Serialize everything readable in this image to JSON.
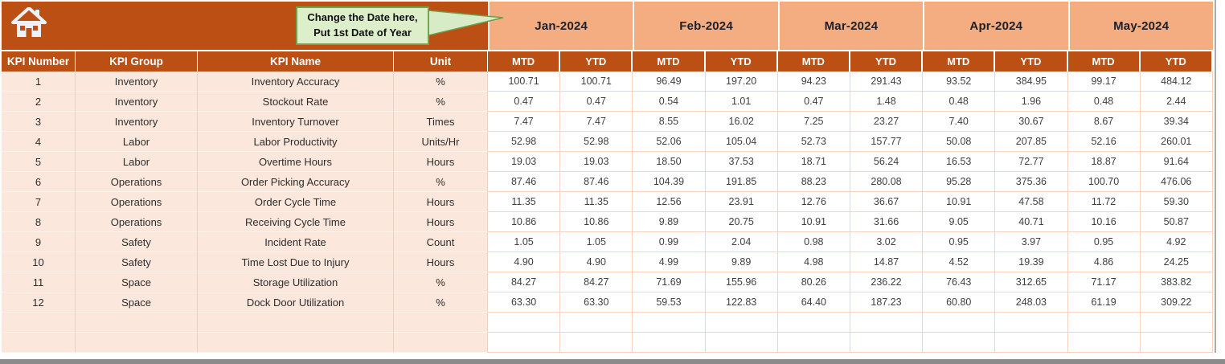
{
  "banner": {
    "callout": {
      "line1": "Change the Date here,",
      "line2": "Put 1st Date of Year"
    }
  },
  "table": {
    "left_headers": [
      "KPI Number",
      "KPI Group",
      "KPI Name",
      "Unit"
    ],
    "months": [
      "Jan-2024",
      "Feb-2024",
      "Mar-2024",
      "Apr-2024",
      "May-2024"
    ],
    "sub_headers": [
      "MTD",
      "YTD"
    ],
    "rows": [
      {
        "num": "1",
        "group": "Inventory",
        "name": "Inventory Accuracy",
        "unit": "%",
        "values": [
          "100.71",
          "100.71",
          "96.49",
          "197.20",
          "94.23",
          "291.43",
          "93.52",
          "384.95",
          "99.17",
          "484.12"
        ]
      },
      {
        "num": "2",
        "group": "Inventory",
        "name": "Stockout Rate",
        "unit": "%",
        "values": [
          "0.47",
          "0.47",
          "0.54",
          "1.01",
          "0.47",
          "1.48",
          "0.48",
          "1.96",
          "0.48",
          "2.44"
        ]
      },
      {
        "num": "3",
        "group": "Inventory",
        "name": "Inventory Turnover",
        "unit": "Times",
        "values": [
          "7.47",
          "7.47",
          "8.55",
          "16.02",
          "7.25",
          "23.27",
          "7.40",
          "30.67",
          "8.67",
          "39.34"
        ]
      },
      {
        "num": "4",
        "group": "Labor",
        "name": "Labor Productivity",
        "unit": "Units/Hr",
        "values": [
          "52.98",
          "52.98",
          "52.06",
          "105.04",
          "52.73",
          "157.77",
          "50.08",
          "207.85",
          "52.16",
          "260.01"
        ]
      },
      {
        "num": "5",
        "group": "Labor",
        "name": "Overtime Hours",
        "unit": "Hours",
        "values": [
          "19.03",
          "19.03",
          "18.50",
          "37.53",
          "18.71",
          "56.24",
          "16.53",
          "72.77",
          "18.87",
          "91.64"
        ]
      },
      {
        "num": "6",
        "group": "Operations",
        "name": "Order Picking Accuracy",
        "unit": "%",
        "values": [
          "87.46",
          "87.46",
          "104.39",
          "191.85",
          "88.23",
          "280.08",
          "95.28",
          "375.36",
          "100.70",
          "476.06"
        ]
      },
      {
        "num": "7",
        "group": "Operations",
        "name": "Order Cycle Time",
        "unit": "Hours",
        "values": [
          "11.35",
          "11.35",
          "12.56",
          "23.91",
          "12.76",
          "36.67",
          "10.91",
          "47.58",
          "11.72",
          "59.30"
        ]
      },
      {
        "num": "8",
        "group": "Operations",
        "name": "Receiving Cycle Time",
        "unit": "Hours",
        "values": [
          "10.86",
          "10.86",
          "9.89",
          "20.75",
          "10.91",
          "31.66",
          "9.05",
          "40.71",
          "10.16",
          "50.87"
        ]
      },
      {
        "num": "9",
        "group": "Safety",
        "name": "Incident Rate",
        "unit": "Count",
        "values": [
          "1.05",
          "1.05",
          "0.99",
          "2.04",
          "0.98",
          "3.02",
          "0.95",
          "3.97",
          "0.95",
          "4.92"
        ]
      },
      {
        "num": "10",
        "group": "Safety",
        "name": "Time Lost Due to Injury",
        "unit": "Hours",
        "values": [
          "4.90",
          "4.90",
          "4.99",
          "9.89",
          "4.98",
          "14.87",
          "4.52",
          "19.39",
          "4.86",
          "24.25"
        ]
      },
      {
        "num": "11",
        "group": "Space",
        "name": "Storage Utilization",
        "unit": "%",
        "values": [
          "84.27",
          "84.27",
          "71.69",
          "155.96",
          "80.26",
          "236.22",
          "76.43",
          "312.65",
          "71.17",
          "383.82"
        ]
      },
      {
        "num": "12",
        "group": "Space",
        "name": "Dock Door Utilization",
        "unit": "%",
        "values": [
          "63.30",
          "63.30",
          "59.53",
          "122.83",
          "64.40",
          "187.23",
          "60.80",
          "248.03",
          "61.19",
          "309.22"
        ]
      }
    ],
    "empty_rows": 2
  },
  "colors": {
    "accent_dark": "#BB4F14",
    "month_header": "#F3AD80",
    "left_cols_bg": "#FBE7DB",
    "gridline": "#F4D3C2",
    "callout_bg": "#DDEECB",
    "callout_border": "#76A24C",
    "window_bar": "#8B8B8B"
  },
  "icons": {
    "home": "home-icon"
  }
}
